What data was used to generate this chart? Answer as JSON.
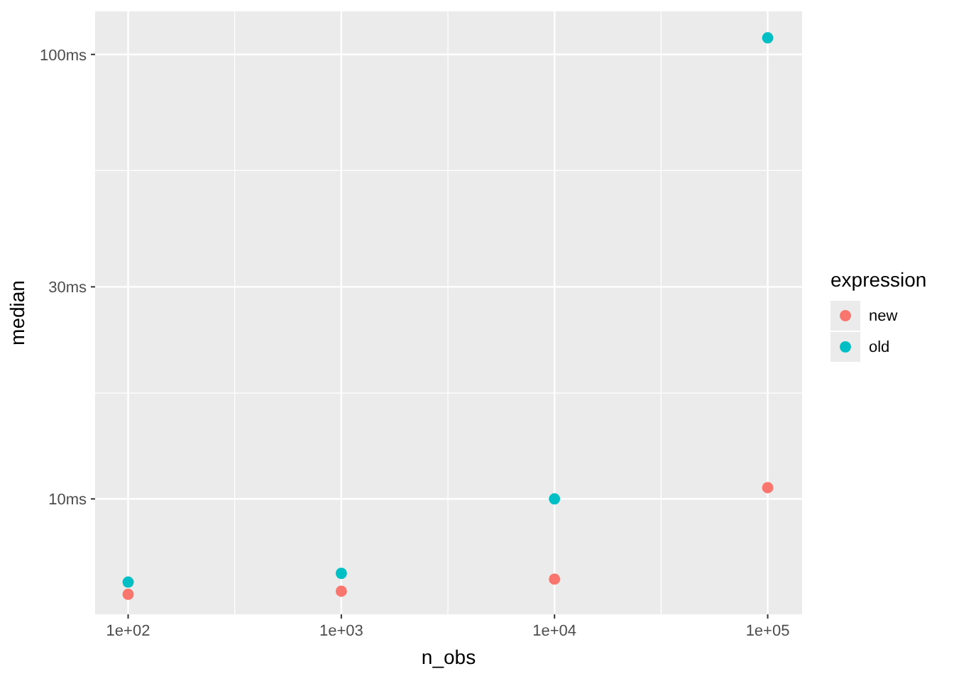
{
  "chart_data": {
    "type": "scatter",
    "xlabel": "n_obs",
    "ylabel": "median",
    "legend_title": "expression",
    "x": [
      100,
      1000,
      10000,
      100000
    ],
    "series": [
      {
        "name": "new",
        "color": "#f8766d",
        "values": [
          6.1,
          6.2,
          6.6,
          10.6
        ]
      },
      {
        "name": "old",
        "color": "#00bfc4",
        "values": [
          6.5,
          6.8,
          10,
          109
        ]
      }
    ],
    "log": "xy",
    "xlim": [
      70,
      145000
    ],
    "ylim": [
      5.5,
      125
    ],
    "xticks": [
      {
        "value": 100,
        "label": "1e+02"
      },
      {
        "value": 316,
        "label": null
      },
      {
        "value": 1000,
        "label": "1e+03"
      },
      {
        "value": 3162,
        "label": null
      },
      {
        "value": 10000,
        "label": "1e+04"
      },
      {
        "value": 31623,
        "label": null
      },
      {
        "value": 100000,
        "label": "1e+05"
      }
    ],
    "yticks": [
      {
        "value": 10,
        "label": "10ms"
      },
      {
        "value": 17.3,
        "label": null
      },
      {
        "value": 30,
        "label": "30ms"
      },
      {
        "value": 54.8,
        "label": null
      },
      {
        "value": 100,
        "label": "100ms"
      }
    ],
    "grid": true,
    "legend": "right",
    "marker": "circle"
  }
}
